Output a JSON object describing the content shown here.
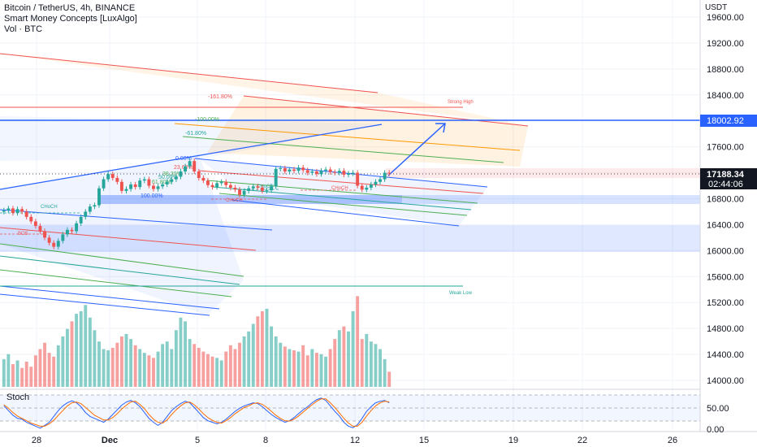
{
  "legend": {
    "symbol": "Bitcoin / TetherUS, 4h, BINANCE",
    "indicator": "Smart Money Concepts [LuxAlgo]",
    "volume": "Vol · BTC"
  },
  "price_axis": {
    "currency": "USDT",
    "ticks": [
      "19600.00",
      "19200.00",
      "18800.00",
      "18400.00",
      "18000.00",
      "17600.00",
      "17200.00",
      "16800.00",
      "16400.00",
      "16000.00",
      "15600.00",
      "15200.00",
      "14800.00",
      "14400.00",
      "14000.00"
    ],
    "badges": [
      {
        "label": "18002.92",
        "bg": "#2962ff"
      },
      {
        "label": "17188.34",
        "bg": "#131722"
      },
      {
        "label": "02:44:06",
        "bg": "#131722"
      }
    ]
  },
  "stoch_pane": {
    "title": "Stoch",
    "ticks": [
      "50.00",
      "0.00"
    ]
  },
  "time_axis": {
    "labels": [
      "28",
      "Dec",
      "5",
      "8",
      "12",
      "15",
      "19",
      "22",
      "26"
    ]
  },
  "annotations": {
    "strong_high": "Strong High",
    "weak_low": "Weak Low",
    "choch_left": "CHoCH",
    "bos_left": "BOS",
    "choch_mid": "CHoCH",
    "choch_right": "CHoCH",
    "choch_low": "CHoCH",
    "fib_n161": "-161.80%",
    "fib_n100": "-100.00%",
    "fib_n61": "-61.80%",
    "fib_0": "0.00%",
    "fib_23": "23.60%",
    "fib_38": "38.20%",
    "fib_50": "50.00%",
    "fib_61": "61.80%",
    "fib_100": "100.00%"
  },
  "colors": {
    "up": "#26a69a",
    "down": "#ef5350",
    "fib_blue": "#2962ff",
    "fib_red": "#ef5350"
  },
  "chart_data": {
    "type": "candlestick",
    "symbol": "BTCUSDT",
    "interval": "4h",
    "ylim": [
      13900,
      19700
    ],
    "price_levels": {
      "strong_high": 18002.92,
      "last": 17188.34
    },
    "close_series": [
      16620,
      16650,
      16580,
      16640,
      16600,
      16520,
      16450,
      16380,
      16300,
      16200,
      16120,
      16060,
      16150,
      16250,
      16320,
      16300,
      16420,
      16520,
      16600,
      16680,
      16700,
      16960,
      17100,
      17180,
      17120,
      17060,
      16920,
      16950,
      17020,
      16980,
      17080,
      17100,
      17000,
      16950,
      16990,
      17020,
      17060,
      17100,
      17140,
      17220,
      17300,
      17380,
      17220,
      17120,
      17080,
      17010,
      16980,
      17040,
      17060,
      17010,
      16970,
      16940,
      16860,
      16920,
      16960,
      16990,
      16970,
      16920,
      16930,
      16990,
      17260,
      17270,
      17220,
      17250,
      17230,
      17280,
      17240,
      17200,
      17220,
      17180,
      17230,
      17250,
      17210,
      17200,
      17230,
      17170,
      17190,
      17200,
      17000,
      16940,
      16970,
      17020,
      17060,
      17100,
      17200,
      17188
    ],
    "volume_series": [
      22,
      26,
      18,
      21,
      15,
      20,
      16,
      25,
      30,
      35,
      27,
      24,
      33,
      40,
      46,
      52,
      58,
      60,
      65,
      55,
      45,
      36,
      30,
      29,
      31,
      35,
      40,
      42,
      38,
      33,
      30,
      27,
      25,
      23,
      28,
      34,
      36,
      30,
      45,
      55,
      52,
      38,
      34,
      31,
      28,
      26,
      24,
      23,
      21,
      28,
      33,
      30,
      35,
      40,
      44,
      50,
      56,
      60,
      62,
      48,
      40,
      35,
      32,
      30,
      29,
      28,
      33,
      25,
      30,
      27,
      26,
      24,
      30,
      38,
      45,
      48,
      44,
      60,
      72,
      38,
      42,
      36,
      34,
      30,
      22,
      12
    ],
    "stoch_k": [
      72,
      60,
      48,
      40,
      38,
      30,
      25,
      20,
      15,
      22,
      30,
      45,
      60,
      72,
      80,
      85,
      80,
      70,
      55,
      45,
      40,
      35,
      30,
      38,
      50,
      62,
      74,
      82,
      86,
      80,
      70,
      55,
      40,
      30,
      22,
      30,
      45,
      60,
      70,
      78,
      84,
      80,
      68,
      55,
      42,
      34,
      30,
      26,
      30,
      38,
      48,
      58,
      66,
      72,
      76,
      80,
      78,
      70,
      60,
      50,
      42,
      36,
      30,
      34,
      42,
      52,
      62,
      70,
      80,
      88,
      92,
      86,
      72,
      58,
      46,
      30,
      20,
      16,
      24,
      40,
      58,
      70,
      80,
      84,
      86,
      80
    ],
    "stoch_d": [
      75,
      66,
      55,
      46,
      40,
      34,
      28,
      24,
      20,
      20,
      26,
      35,
      48,
      60,
      72,
      80,
      82,
      78,
      68,
      58,
      48,
      42,
      36,
      36,
      42,
      52,
      64,
      74,
      82,
      84,
      76,
      65,
      50,
      38,
      30,
      28,
      36,
      50,
      62,
      72,
      80,
      82,
      75,
      64,
      52,
      42,
      35,
      30,
      28,
      34,
      42,
      52,
      60,
      68,
      72,
      78,
      80,
      76,
      68,
      58,
      48,
      40,
      34,
      33,
      38,
      46,
      56,
      66,
      75,
      84,
      90,
      90,
      80,
      68,
      54,
      40,
      28,
      20,
      20,
      30,
      46,
      60,
      72,
      80,
      84,
      82
    ]
  }
}
